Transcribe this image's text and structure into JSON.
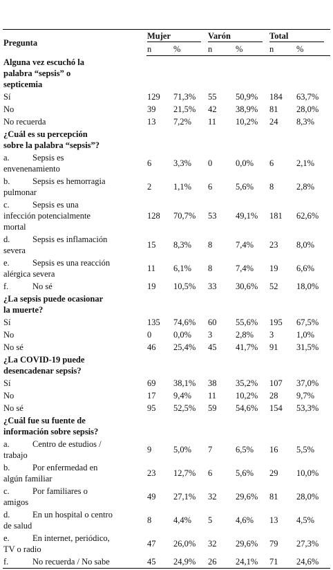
{
  "header": {
    "question": "Pregunta",
    "groups": [
      "Mujer",
      "Varón",
      "Total"
    ],
    "sub": [
      "n",
      "%",
      "n",
      "%",
      "n",
      "%"
    ]
  },
  "sections": [
    {
      "title": [
        "Alguna vez escuchó la",
        "palabra “sepsis” o",
        "septicemia"
      ],
      "rows": [
        {
          "text": [
            "Sí"
          ],
          "cells": [
            "129",
            "71,3%",
            "55",
            "50,9%",
            "184",
            "63,7%"
          ]
        },
        {
          "text": [
            "No"
          ],
          "cells": [
            "39",
            "21,5%",
            "42",
            "38,9%",
            "81",
            "28,0%"
          ]
        },
        {
          "text": [
            "No recuerda"
          ],
          "cells": [
            "13",
            "7,2%",
            "11",
            "10,2%",
            "24",
            "8,3%"
          ]
        }
      ]
    },
    {
      "title": [
        "¿Cuál es su percepción",
        "sobre la palabra “sepsis”?"
      ],
      "rows": [
        {
          "marker": "a.",
          "text": [
            "Sepsis es",
            "envenenamiento"
          ],
          "cells": [
            "6",
            "3,3%",
            "0",
            "0,0%",
            "6",
            "2,1%"
          ]
        },
        {
          "marker": "b.",
          "text": [
            "Sepsis es hemorragia",
            "pulmonar"
          ],
          "cells": [
            "2",
            "1,1%",
            "6",
            "5,6%",
            "8",
            "2,8%"
          ]
        },
        {
          "marker": "c.",
          "text": [
            "Sepsis es una",
            "infección potencialmente",
            "mortal"
          ],
          "cells": [
            "128",
            "70,7%",
            "53",
            "49,1%",
            "181",
            "62,6%"
          ]
        },
        {
          "marker": "d.",
          "text": [
            "Sepsis es inflamación",
            "severa"
          ],
          "cells": [
            "15",
            "8,3%",
            "8",
            "7,4%",
            "23",
            "8,0%"
          ]
        },
        {
          "marker": "e.",
          "text": [
            "Sepsis es una reacción",
            "alérgica severa"
          ],
          "cells": [
            "11",
            "6,1%",
            "8",
            "7,4%",
            "19",
            "6,6%"
          ]
        },
        {
          "marker": "f.",
          "text": [
            "No sé"
          ],
          "cells": [
            "19",
            "10,5%",
            "33",
            "30,6%",
            "52",
            "18,0%"
          ]
        }
      ]
    },
    {
      "title": [
        "¿La sepsis puede ocasionar",
        "la muerte?"
      ],
      "rows": [
        {
          "text": [
            "Sí"
          ],
          "cells": [
            "135",
            "74,6%",
            "60",
            "55,6%",
            "195",
            "67,5%"
          ]
        },
        {
          "text": [
            "No"
          ],
          "cells": [
            "0",
            "0,0%",
            "3",
            "2,8%",
            "3",
            "1,0%"
          ]
        },
        {
          "text": [
            "No sé"
          ],
          "cells": [
            "46",
            "25,4%",
            "45",
            "41,7%",
            "91",
            "31,5%"
          ]
        }
      ]
    },
    {
      "title": [
        "¿La COVID-19 puede",
        "desencadenar sepsis?"
      ],
      "rows": [
        {
          "text": [
            "Sí"
          ],
          "cells": [
            "69",
            "38,1%",
            "38",
            "35,2%",
            "107",
            "37,0%"
          ]
        },
        {
          "text": [
            "No"
          ],
          "cells": [
            "17",
            "9,4%",
            "11",
            "10,2%",
            "28",
            "9,7%"
          ]
        },
        {
          "text": [
            "No sé"
          ],
          "cells": [
            "95",
            "52,5%",
            "59",
            "54,6%",
            "154",
            "53,3%"
          ]
        }
      ]
    },
    {
      "title": [
        "¿Cuál fue su fuente de",
        "información sobre sepsis?"
      ],
      "rows": [
        {
          "marker": "a.",
          "text": [
            "Centro de estudios /",
            "trabajo"
          ],
          "cells": [
            "9",
            "5,0%",
            "7",
            "6,5%",
            "16",
            "5,5%"
          ]
        },
        {
          "marker": "b.",
          "text": [
            "Por enfermedad en",
            "algún familiar"
          ],
          "cells": [
            "23",
            "12,7%",
            "6",
            "5,6%",
            "29",
            "10,0%"
          ]
        },
        {
          "marker": "c.",
          "text": [
            "Por familiares o",
            "amigos"
          ],
          "cells": [
            "49",
            "27,1%",
            "32",
            "29,6%",
            "81",
            "28,0%"
          ]
        },
        {
          "marker": "d.",
          "text": [
            "En un hospital o centro",
            "de salud"
          ],
          "cells": [
            "8",
            "4,4%",
            "5",
            "4,6%",
            "13",
            "4,5%"
          ]
        },
        {
          "marker": "e.",
          "text": [
            "En internet, periódico,",
            "TV o radio"
          ],
          "cells": [
            "47",
            "26,0%",
            "32",
            "29,6%",
            "79",
            "27,3%"
          ]
        },
        {
          "marker": "f.",
          "text": [
            "No recuerda / No sabe"
          ],
          "cells": [
            "45",
            "24,9%",
            "26",
            "24,1%",
            "71",
            "24,6%"
          ]
        }
      ]
    }
  ]
}
